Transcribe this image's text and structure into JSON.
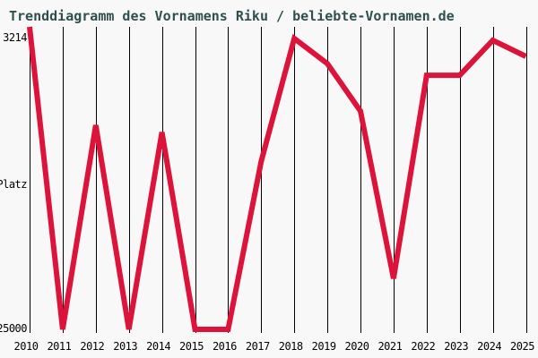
{
  "header": {
    "title": "Trenddiagramm des Vornamens Riku / beliebte-Vornamen.de"
  },
  "colors": {
    "background": "#F8F8F8",
    "title_text": "#2F4F4F",
    "line": "#DC143C",
    "grid": "#000000",
    "tick_text": "#000000"
  },
  "y_axis_labels": {
    "top": "3214",
    "middle": "Platz",
    "bottom": "25000"
  },
  "chart_data": {
    "type": "line",
    "title": "Trenddiagramm des Vornamens Riku / beliebte-Vornamen.de",
    "xlabel": "",
    "ylabel": "Platz",
    "x": [
      2010,
      2011,
      2012,
      2013,
      2014,
      2015,
      2016,
      2017,
      2018,
      2019,
      2020,
      2021,
      2022,
      2023,
      2024,
      2025
    ],
    "values": [
      3214,
      25000,
      10300,
      25000,
      10800,
      25000,
      25000,
      12900,
      4050,
      5860,
      9280,
      21340,
      6700,
      6700,
      4180,
      5340
    ],
    "series_name": "Riku",
    "y_axis": {
      "top_value": 3214,
      "bottom_value": 25000,
      "inverted_rank_axis": true,
      "tick_labels": [
        "3214",
        "25000"
      ]
    },
    "grid": "vertical-year-lines",
    "legend": "none",
    "line_color": "#DC143C",
    "note_best_rank": 3214,
    "note_unranked_value": 25000
  }
}
